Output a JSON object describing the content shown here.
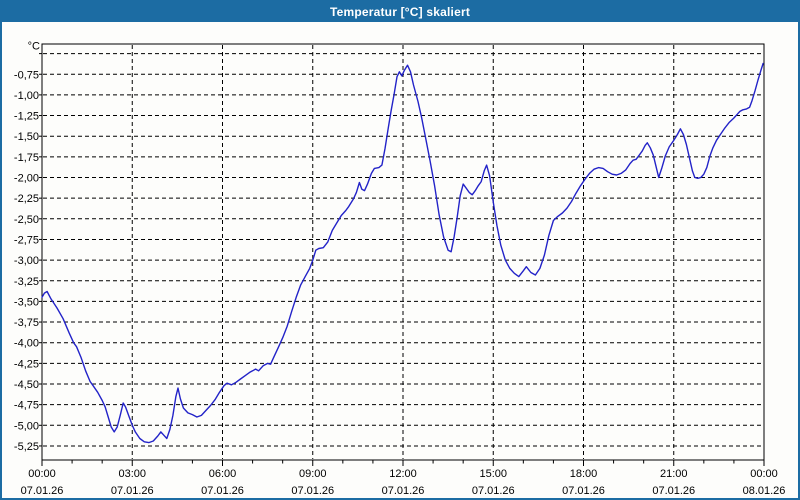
{
  "window": {
    "title": "Temperatur [°C] skaliert"
  },
  "colors": {
    "title_bar": "#1c6ca3",
    "frame": "#1c6ca3",
    "background": "#fdfdfb",
    "plot_background": "#ffffff",
    "grid": "#000000",
    "axis": "#000000",
    "line": "#2323c8",
    "label_text": "#000000",
    "title_text": "#ffffff"
  },
  "chart_data": {
    "type": "line",
    "title": "Temperatur [°C] skaliert",
    "xlabel": "",
    "ylabel": "°C",
    "unit_label": "°C",
    "decimal_separator": ",",
    "grid": true,
    "legend": "none",
    "xlim_hours": [
      0,
      24
    ],
    "ylim": [
      -5.42,
      -0.38
    ],
    "y_gridlines": [
      -0.5,
      -0.75,
      -1.0,
      -1.25,
      -1.5,
      -1.75,
      -2.0,
      -2.25,
      -2.5,
      -2.75,
      -3.0,
      -3.25,
      -3.5,
      -3.75,
      -4.0,
      -4.25,
      -4.5,
      -4.75,
      -5.0,
      -5.25
    ],
    "y_ticks": [
      {
        "value": -0.75,
        "label": "-0,75"
      },
      {
        "value": -1.0,
        "label": "-1,00"
      },
      {
        "value": -1.25,
        "label": "-1,25"
      },
      {
        "value": -1.5,
        "label": "-1,50"
      },
      {
        "value": -1.75,
        "label": "-1,75"
      },
      {
        "value": -2.0,
        "label": "-2,00"
      },
      {
        "value": -2.25,
        "label": "-2,25"
      },
      {
        "value": -2.5,
        "label": "-2,50"
      },
      {
        "value": -2.75,
        "label": "-2,75"
      },
      {
        "value": -3.0,
        "label": "-3,00"
      },
      {
        "value": -3.25,
        "label": "-3,25"
      },
      {
        "value": -3.5,
        "label": "-3,50"
      },
      {
        "value": -3.75,
        "label": "-3,75"
      },
      {
        "value": -4.0,
        "label": "-4,00"
      },
      {
        "value": -4.25,
        "label": "-4,25"
      },
      {
        "value": -4.5,
        "label": "-4,50"
      },
      {
        "value": -4.75,
        "label": "-4,75"
      },
      {
        "value": -5.0,
        "label": "-5,00"
      },
      {
        "value": -5.25,
        "label": "-5,25"
      }
    ],
    "x_ticks": [
      {
        "hour": 0,
        "time": "00:00",
        "date": "07.01.26"
      },
      {
        "hour": 3,
        "time": "03:00",
        "date": "07.01.26"
      },
      {
        "hour": 6,
        "time": "06:00",
        "date": "07.01.26"
      },
      {
        "hour": 9,
        "time": "09:00",
        "date": "07.01.26"
      },
      {
        "hour": 12,
        "time": "12:00",
        "date": "07.01.26"
      },
      {
        "hour": 15,
        "time": "15:00",
        "date": "07.01.26"
      },
      {
        "hour": 18,
        "time": "18:00",
        "date": "07.01.26"
      },
      {
        "hour": 21,
        "time": "21:00",
        "date": "07.01.26"
      },
      {
        "hour": 24,
        "time": "00:00",
        "date": "08.01.26"
      }
    ],
    "series": [
      {
        "name": "Temperatur",
        "points": [
          [
            0,
            -3.45
          ],
          [
            0.08,
            -3.4
          ],
          [
            0.17,
            -3.38
          ],
          [
            0.3,
            -3.47
          ],
          [
            0.5,
            -3.58
          ],
          [
            0.7,
            -3.71
          ],
          [
            0.9,
            -3.88
          ],
          [
            1.05,
            -4.0
          ],
          [
            1.15,
            -4.05
          ],
          [
            1.3,
            -4.18
          ],
          [
            1.45,
            -4.34
          ],
          [
            1.6,
            -4.47
          ],
          [
            1.7,
            -4.52
          ],
          [
            1.85,
            -4.6
          ],
          [
            2.0,
            -4.7
          ],
          [
            2.1,
            -4.78
          ],
          [
            2.2,
            -4.9
          ],
          [
            2.3,
            -5.02
          ],
          [
            2.4,
            -5.08
          ],
          [
            2.5,
            -5.02
          ],
          [
            2.6,
            -4.88
          ],
          [
            2.7,
            -4.73
          ],
          [
            2.78,
            -4.78
          ],
          [
            2.9,
            -4.9
          ],
          [
            3.0,
            -5.0
          ],
          [
            3.1,
            -5.08
          ],
          [
            3.25,
            -5.16
          ],
          [
            3.4,
            -5.2
          ],
          [
            3.55,
            -5.21
          ],
          [
            3.7,
            -5.19
          ],
          [
            3.85,
            -5.13
          ],
          [
            3.95,
            -5.08
          ],
          [
            4.05,
            -5.12
          ],
          [
            4.15,
            -5.16
          ],
          [
            4.25,
            -5.05
          ],
          [
            4.35,
            -4.88
          ],
          [
            4.45,
            -4.65
          ],
          [
            4.52,
            -4.55
          ],
          [
            4.6,
            -4.68
          ],
          [
            4.7,
            -4.79
          ],
          [
            4.85,
            -4.85
          ],
          [
            5.0,
            -4.87
          ],
          [
            5.15,
            -4.9
          ],
          [
            5.3,
            -4.88
          ],
          [
            5.45,
            -4.82
          ],
          [
            5.6,
            -4.76
          ],
          [
            5.75,
            -4.69
          ],
          [
            5.9,
            -4.6
          ],
          [
            6.05,
            -4.52
          ],
          [
            6.15,
            -4.49
          ],
          [
            6.3,
            -4.51
          ],
          [
            6.45,
            -4.48
          ],
          [
            6.6,
            -4.44
          ],
          [
            6.75,
            -4.4
          ],
          [
            6.9,
            -4.36
          ],
          [
            7.0,
            -4.34
          ],
          [
            7.1,
            -4.32
          ],
          [
            7.2,
            -4.34
          ],
          [
            7.35,
            -4.28
          ],
          [
            7.5,
            -4.25
          ],
          [
            7.6,
            -4.26
          ],
          [
            7.7,
            -4.18
          ],
          [
            7.85,
            -4.06
          ],
          [
            8.0,
            -3.94
          ],
          [
            8.15,
            -3.8
          ],
          [
            8.3,
            -3.62
          ],
          [
            8.45,
            -3.45
          ],
          [
            8.6,
            -3.3
          ],
          [
            8.75,
            -3.2
          ],
          [
            8.9,
            -3.1
          ],
          [
            9.0,
            -3.0
          ],
          [
            9.1,
            -2.88
          ],
          [
            9.2,
            -2.86
          ],
          [
            9.35,
            -2.85
          ],
          [
            9.5,
            -2.78
          ],
          [
            9.65,
            -2.64
          ],
          [
            9.8,
            -2.55
          ],
          [
            9.95,
            -2.46
          ],
          [
            10.1,
            -2.4
          ],
          [
            10.2,
            -2.35
          ],
          [
            10.35,
            -2.26
          ],
          [
            10.45,
            -2.18
          ],
          [
            10.55,
            -2.06
          ],
          [
            10.63,
            -2.14
          ],
          [
            10.72,
            -2.16
          ],
          [
            10.82,
            -2.08
          ],
          [
            10.95,
            -1.95
          ],
          [
            11.05,
            -1.89
          ],
          [
            11.2,
            -1.88
          ],
          [
            11.3,
            -1.85
          ],
          [
            11.4,
            -1.65
          ],
          [
            11.5,
            -1.42
          ],
          [
            11.6,
            -1.2
          ],
          [
            11.7,
            -1.0
          ],
          [
            11.8,
            -0.78
          ],
          [
            11.88,
            -0.72
          ],
          [
            11.96,
            -0.77
          ],
          [
            12.05,
            -0.7
          ],
          [
            12.15,
            -0.64
          ],
          [
            12.25,
            -0.72
          ],
          [
            12.35,
            -0.88
          ],
          [
            12.5,
            -1.08
          ],
          [
            12.62,
            -1.28
          ],
          [
            12.75,
            -1.52
          ],
          [
            12.9,
            -1.8
          ],
          [
            13.05,
            -2.1
          ],
          [
            13.2,
            -2.45
          ],
          [
            13.35,
            -2.72
          ],
          [
            13.5,
            -2.88
          ],
          [
            13.6,
            -2.9
          ],
          [
            13.7,
            -2.72
          ],
          [
            13.8,
            -2.48
          ],
          [
            13.9,
            -2.22
          ],
          [
            14.0,
            -2.08
          ],
          [
            14.1,
            -2.13
          ],
          [
            14.2,
            -2.18
          ],
          [
            14.3,
            -2.21
          ],
          [
            14.4,
            -2.16
          ],
          [
            14.5,
            -2.1
          ],
          [
            14.6,
            -2.05
          ],
          [
            14.7,
            -1.92
          ],
          [
            14.78,
            -1.85
          ],
          [
            14.88,
            -1.98
          ],
          [
            15.0,
            -2.3
          ],
          [
            15.12,
            -2.58
          ],
          [
            15.25,
            -2.82
          ],
          [
            15.4,
            -3.0
          ],
          [
            15.55,
            -3.1
          ],
          [
            15.7,
            -3.16
          ],
          [
            15.85,
            -3.2
          ],
          [
            16.0,
            -3.13
          ],
          [
            16.1,
            -3.08
          ],
          [
            16.25,
            -3.15
          ],
          [
            16.4,
            -3.18
          ],
          [
            16.55,
            -3.1
          ],
          [
            16.7,
            -2.94
          ],
          [
            16.85,
            -2.7
          ],
          [
            17.0,
            -2.52
          ],
          [
            17.15,
            -2.47
          ],
          [
            17.3,
            -2.43
          ],
          [
            17.45,
            -2.37
          ],
          [
            17.6,
            -2.29
          ],
          [
            17.75,
            -2.19
          ],
          [
            17.9,
            -2.1
          ],
          [
            18.05,
            -2.02
          ],
          [
            18.2,
            -1.95
          ],
          [
            18.35,
            -1.9
          ],
          [
            18.5,
            -1.88
          ],
          [
            18.65,
            -1.89
          ],
          [
            18.8,
            -1.93
          ],
          [
            18.95,
            -1.96
          ],
          [
            19.1,
            -1.97
          ],
          [
            19.25,
            -1.95
          ],
          [
            19.4,
            -1.91
          ],
          [
            19.55,
            -1.83
          ],
          [
            19.65,
            -1.79
          ],
          [
            19.75,
            -1.78
          ],
          [
            19.85,
            -1.73
          ],
          [
            19.95,
            -1.68
          ],
          [
            20.05,
            -1.61
          ],
          [
            20.12,
            -1.58
          ],
          [
            20.22,
            -1.64
          ],
          [
            20.32,
            -1.73
          ],
          [
            20.42,
            -1.88
          ],
          [
            20.5,
            -2.0
          ],
          [
            20.6,
            -1.89
          ],
          [
            20.72,
            -1.74
          ],
          [
            20.85,
            -1.63
          ],
          [
            21.0,
            -1.55
          ],
          [
            21.12,
            -1.48
          ],
          [
            21.22,
            -1.41
          ],
          [
            21.32,
            -1.48
          ],
          [
            21.42,
            -1.6
          ],
          [
            21.52,
            -1.76
          ],
          [
            21.62,
            -1.92
          ],
          [
            21.7,
            -2.0
          ],
          [
            21.8,
            -2.01
          ],
          [
            21.9,
            -2.0
          ],
          [
            22.0,
            -1.96
          ],
          [
            22.1,
            -1.88
          ],
          [
            22.2,
            -1.74
          ],
          [
            22.3,
            -1.64
          ],
          [
            22.42,
            -1.55
          ],
          [
            22.55,
            -1.48
          ],
          [
            22.7,
            -1.4
          ],
          [
            22.85,
            -1.33
          ],
          [
            23.0,
            -1.28
          ],
          [
            23.1,
            -1.24
          ],
          [
            23.2,
            -1.2
          ],
          [
            23.3,
            -1.18
          ],
          [
            23.42,
            -1.17
          ],
          [
            23.52,
            -1.15
          ],
          [
            23.6,
            -1.07
          ],
          [
            23.7,
            -0.95
          ],
          [
            23.8,
            -0.82
          ],
          [
            23.9,
            -0.7
          ],
          [
            23.97,
            -0.62
          ]
        ]
      }
    ]
  }
}
